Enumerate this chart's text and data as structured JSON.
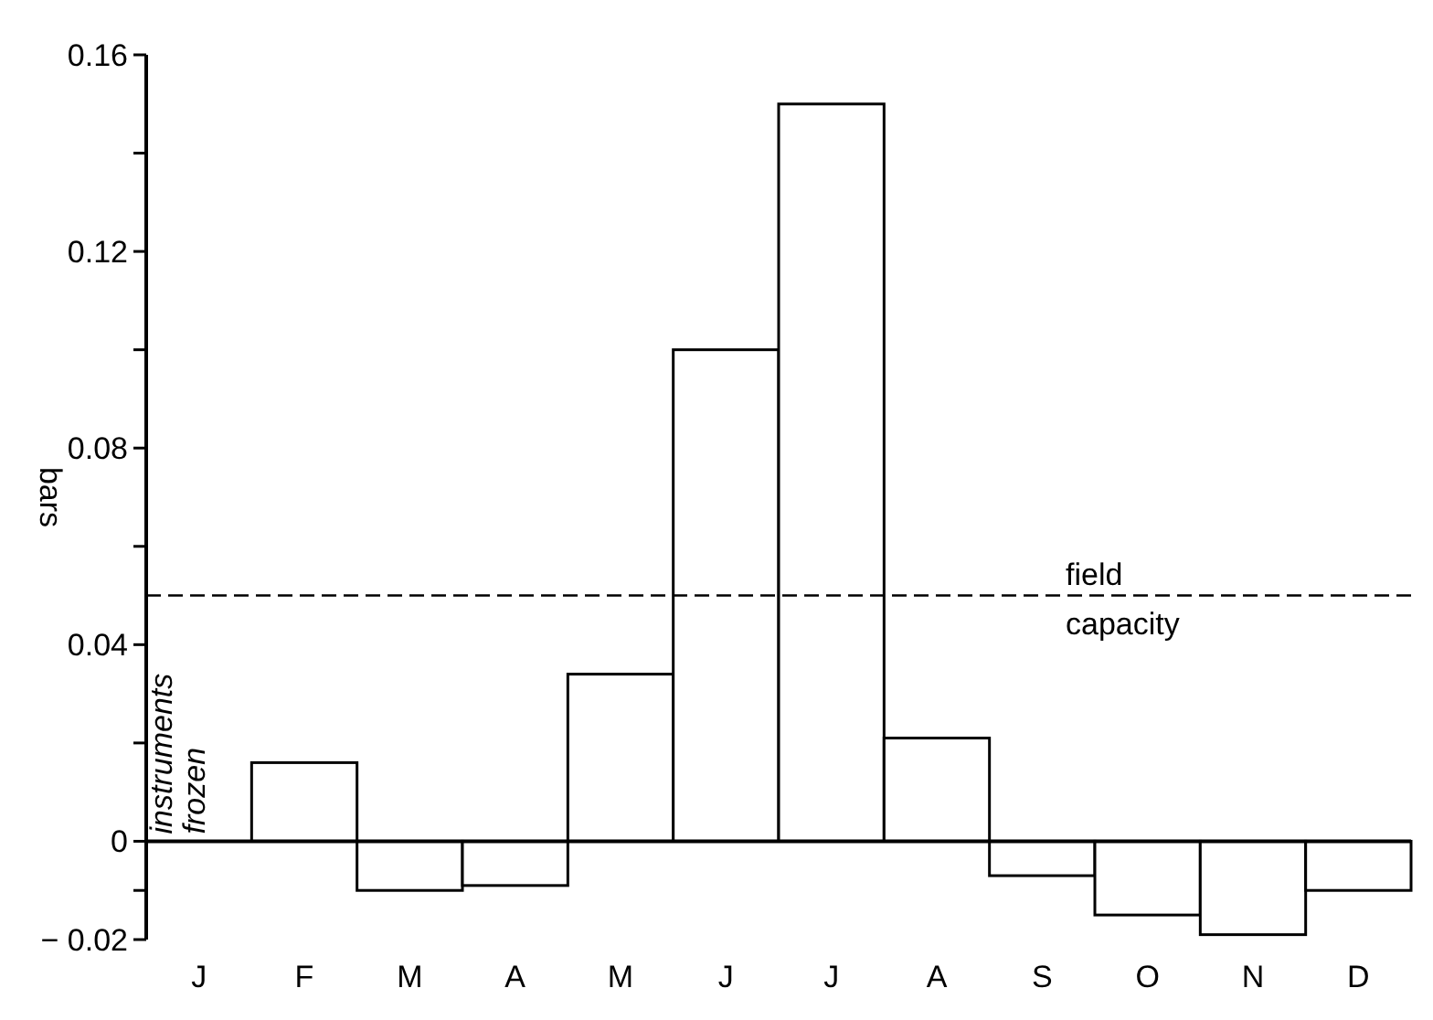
{
  "chart_data": {
    "type": "bar",
    "ylabel": "bars",
    "categories": [
      "J",
      "F",
      "M",
      "A",
      "M",
      "J",
      "J",
      "A",
      "S",
      "O",
      "N",
      "D"
    ],
    "values": [
      null,
      0.016,
      -0.01,
      -0.009,
      0.034,
      0.1,
      0.15,
      0.021,
      -0.007,
      -0.015,
      -0.019,
      -0.01
    ],
    "color": "#ffffff",
    "ylim": [
      -0.02,
      0.16
    ],
    "yticks": [
      {
        "value": -0.02,
        "label": "− 0.02"
      },
      {
        "value": -0.01,
        "label": null
      },
      0,
      {
        "value": 0.02,
        "label": null
      },
      0.04,
      {
        "value": 0.06,
        "label": null
      },
      0.08,
      {
        "value": 0.1,
        "label": null
      },
      0.12,
      {
        "value": 0.14,
        "label": null
      },
      0.16
    ],
    "ref_lines": [
      {
        "axis": "y",
        "value": 0.05,
        "label": "field capacity",
        "line_style": "dashed"
      }
    ],
    "annotations": [
      "instruments frozen"
    ],
    "legend": false
  }
}
